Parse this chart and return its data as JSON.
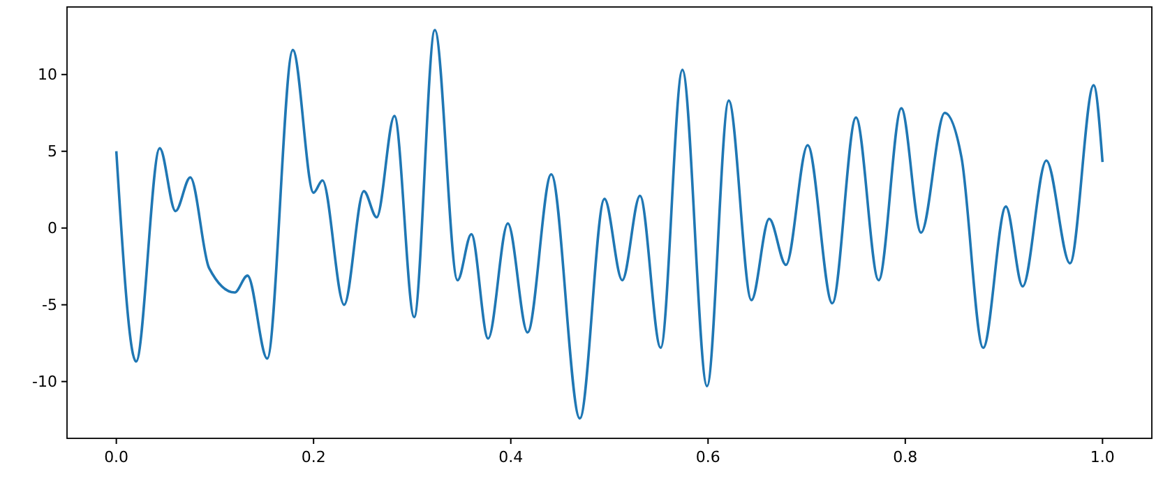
{
  "chart_data": {
    "type": "line",
    "x": [
      0,
      0.02,
      0.044,
      0.06,
      0.075,
      0.094,
      0.12,
      0.133,
      0.153,
      0.179,
      0.2,
      0.209,
      0.231,
      0.251,
      0.264,
      0.282,
      0.302,
      0.323,
      0.346,
      0.36,
      0.377,
      0.397,
      0.417,
      0.441,
      0.47,
      0.495,
      0.513,
      0.531,
      0.552,
      0.574,
      0.599,
      0.621,
      0.644,
      0.662,
      0.679,
      0.701,
      0.726,
      0.75,
      0.773,
      0.796,
      0.816,
      0.84,
      0.857,
      0.879,
      0.902,
      0.919,
      0.943,
      0.967,
      0.991,
      1.0
    ],
    "series": [
      {
        "color": "#1f77b4",
        "values": [
          5.0,
          -8.7,
          5.2,
          1.1,
          3.3,
          -2.6,
          -4.2,
          -3.1,
          -8.5,
          11.6,
          2.3,
          3.1,
          -5.0,
          2.4,
          0.7,
          7.3,
          -5.8,
          12.9,
          -3.4,
          -0.4,
          -7.2,
          0.3,
          -6.8,
          3.5,
          -12.4,
          1.9,
          -3.4,
          2.1,
          -7.8,
          10.3,
          -10.3,
          8.3,
          -4.7,
          0.6,
          -2.4,
          5.4,
          -4.9,
          7.2,
          -3.4,
          7.8,
          -0.3,
          7.5,
          4.6,
          -7.8,
          1.4,
          -3.8,
          4.4,
          -2.3,
          9.3,
          4.3
        ]
      }
    ],
    "xlim": [
      -0.05,
      1.05
    ],
    "ylim": [
      -13.7,
      14.4
    ],
    "xticks": [
      {
        "value": 0,
        "label": "0.0"
      },
      {
        "value": 0.2,
        "label": "0.2"
      },
      {
        "value": 0.4,
        "label": "0.4"
      },
      {
        "value": 0.6,
        "label": "0.6"
      },
      {
        "value": 0.8,
        "label": "0.8"
      },
      {
        "value": 1,
        "label": "1.0"
      }
    ],
    "yticks": [
      -10,
      -5,
      0,
      5,
      10
    ],
    "grid": false,
    "marker": "none",
    "line_style": "solid"
  }
}
